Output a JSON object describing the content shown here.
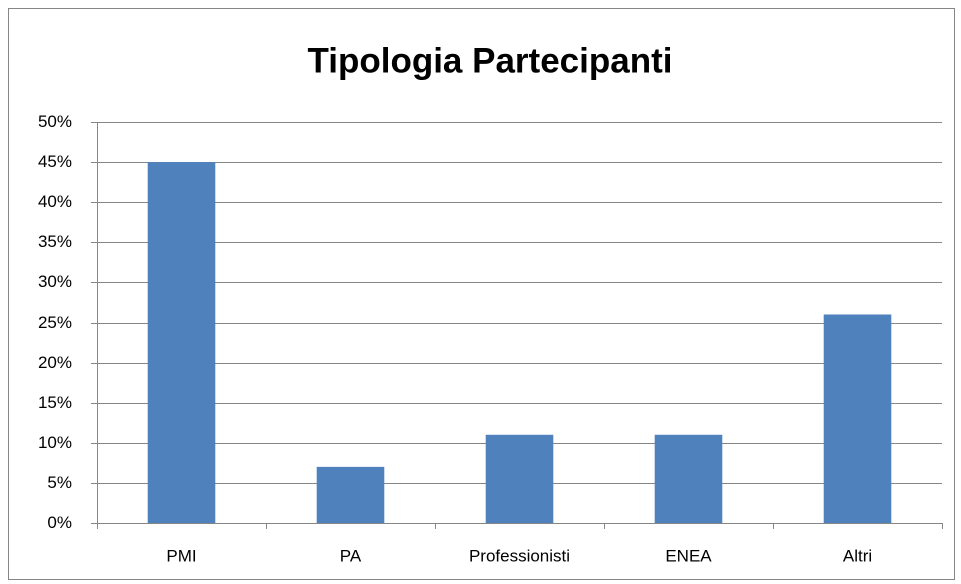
{
  "chart_data": {
    "type": "bar",
    "title": "Tipologia Partecipanti",
    "categories": [
      "PMI",
      "PA",
      "Professionisti",
      "ENEA",
      "Altri"
    ],
    "values": [
      45,
      7,
      11,
      11,
      26
    ],
    "color": "#4f81bd",
    "ylim": [
      0,
      50
    ],
    "yticks": [
      {
        "value": 0,
        "label": "0%"
      },
      {
        "value": 5,
        "label": "5%"
      },
      {
        "value": 10,
        "label": "10%"
      },
      {
        "value": 15,
        "label": "15%"
      },
      {
        "value": 20,
        "label": "20%"
      },
      {
        "value": 25,
        "label": "25%"
      },
      {
        "value": 30,
        "label": "30%"
      },
      {
        "value": 35,
        "label": "35%"
      },
      {
        "value": 40,
        "label": "40%"
      },
      {
        "value": 45,
        "label": "45%"
      },
      {
        "value": 50,
        "label": "50%"
      }
    ],
    "grid": true
  }
}
